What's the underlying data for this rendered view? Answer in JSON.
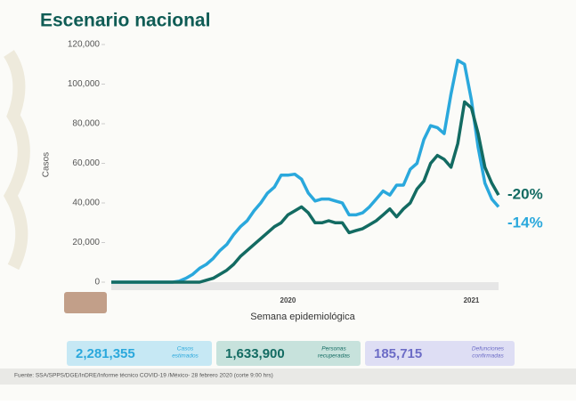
{
  "chart_data": {
    "type": "line",
    "title": "Escenario nacional",
    "ylabel": "Casos",
    "xlabel": "Semana epidemiológica",
    "ylim": [
      0,
      120000
    ],
    "yticks": [
      0,
      {
        "value": 20000,
        "label": "20,000"
      },
      {
        "value": 40000,
        "label": "40,000"
      },
      {
        "value": 60000,
        "label": "60,000"
      },
      {
        "value": 80000,
        "label": "80,000"
      },
      {
        "value": 100000,
        "label": "100,000"
      },
      {
        "value": 120000,
        "label": "120,000"
      }
    ],
    "categories": [
      null,
      null,
      null,
      null,
      null,
      null,
      null,
      null,
      null,
      null,
      null,
      null,
      null,
      null,
      null,
      null,
      null,
      null,
      null,
      null,
      null,
      null,
      null,
      null,
      null,
      null,
      null,
      null,
      null,
      null,
      null,
      null,
      null,
      null,
      null,
      null,
      null,
      null,
      null,
      null,
      null,
      null,
      null,
      null,
      null,
      null,
      null,
      null,
      null,
      null,
      null,
      null,
      null,
      null,
      null,
      null,
      null,
      null
    ],
    "year_labels": [
      {
        "text": "2020",
        "category": 26
      },
      {
        "text": "2021",
        "category": 53
      }
    ],
    "series": [
      {
        "color": "#2aa8dc",
        "end_label": "-14%",
        "values": [
          0,
          0,
          0,
          0,
          0,
          0,
          0,
          0,
          0,
          0,
          500,
          2000,
          4000,
          7000,
          9000,
          12000,
          16000,
          19000,
          24000,
          28000,
          31000,
          36000,
          40000,
          45000,
          48000,
          54000,
          54000,
          54500,
          52000,
          45000,
          41000,
          42000,
          42000,
          41000,
          40000,
          34000,
          34000,
          35000,
          38000,
          42000,
          46000,
          44000,
          49000,
          49000,
          57000,
          60000,
          72000,
          79000,
          78000,
          75000,
          95000,
          112000,
          110000,
          92000,
          68000,
          50000,
          42000,
          38000
        ]
      },
      {
        "color": "#136b62",
        "end_label": "-20%",
        "values": [
          0,
          0,
          0,
          0,
          0,
          0,
          0,
          0,
          0,
          0,
          0,
          0,
          0,
          0,
          1000,
          2000,
          4000,
          6000,
          9000,
          13000,
          16000,
          19000,
          22000,
          25000,
          28000,
          30000,
          34000,
          36000,
          38000,
          35000,
          30000,
          30000,
          31000,
          30000,
          30000,
          25000,
          26000,
          27000,
          29000,
          31000,
          34000,
          37000,
          33000,
          37000,
          40000,
          47000,
          51000,
          60000,
          64000,
          62000,
          58000,
          70000,
          91000,
          88000,
          75000,
          58000,
          50000,
          44000
        ]
      }
    ]
  },
  "stats": [
    {
      "value": "2,281,355",
      "label": [
        "Casos",
        "estimados"
      ]
    },
    {
      "value": "1,633,900",
      "label": [
        "Personas",
        "recuperadas"
      ]
    },
    {
      "value": "185,715",
      "label": [
        "Defunciones",
        "confirmadas"
      ]
    }
  ],
  "source": "Fuente: SSA/SPPS/DGE/InDRE/Informe técnico COVID-19 /México- 28 febrero 2020 (corte 9:00 hrs)"
}
